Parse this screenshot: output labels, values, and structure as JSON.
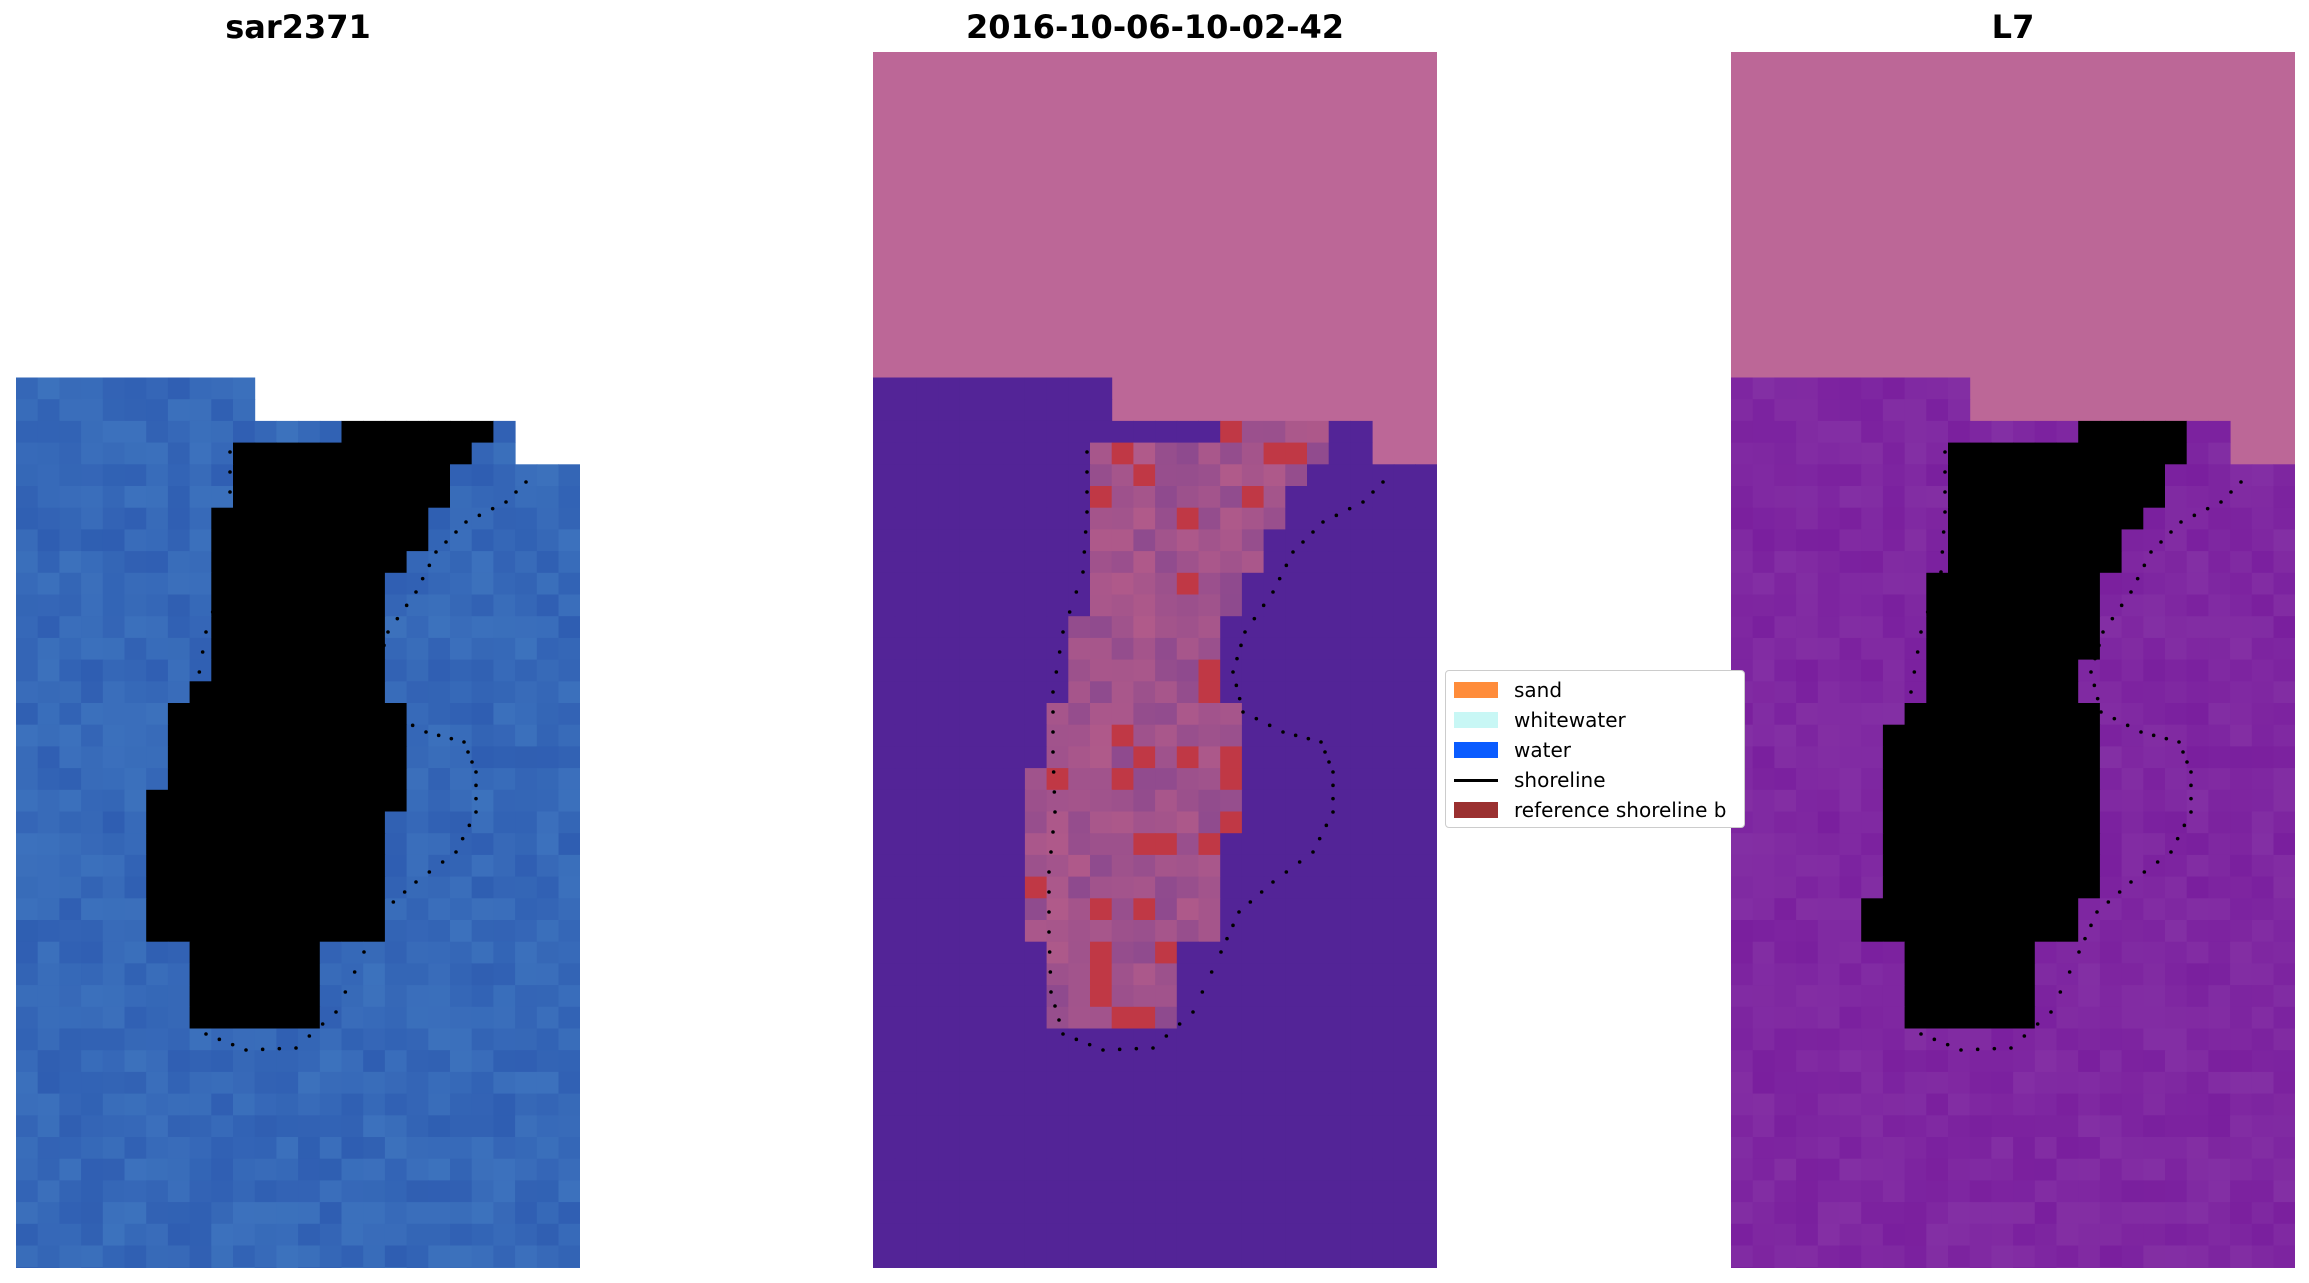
{
  "panels": [
    {
      "title": "sar2371"
    },
    {
      "title": "2016-10-06-10-02-42"
    },
    {
      "title": "L7"
    }
  ],
  "legend": {
    "items": [
      {
        "label": "sand",
        "color": "#ff8c3a",
        "kind": "patch"
      },
      {
        "label": "whitewater",
        "color": "#c8f7f5",
        "kind": "patch"
      },
      {
        "label": "water",
        "color": "#0a5cff",
        "kind": "patch"
      },
      {
        "label": "shoreline",
        "color": "#000000",
        "kind": "line"
      },
      {
        "label": "reference shoreline b",
        "color": "#9a3030",
        "kind": "patch"
      }
    ]
  },
  "colors": {
    "masked_region": "#bc6797",
    "classified_water": "#532497",
    "sand_overlay": "#c03845",
    "rgb_water": "#2f5eb2",
    "rgb_whitewater": "#e8f2f6",
    "ndwi_high": "#c40b3a",
    "ndwi_low": "#7a1f9e",
    "shoreline_dots": "#000000"
  }
}
